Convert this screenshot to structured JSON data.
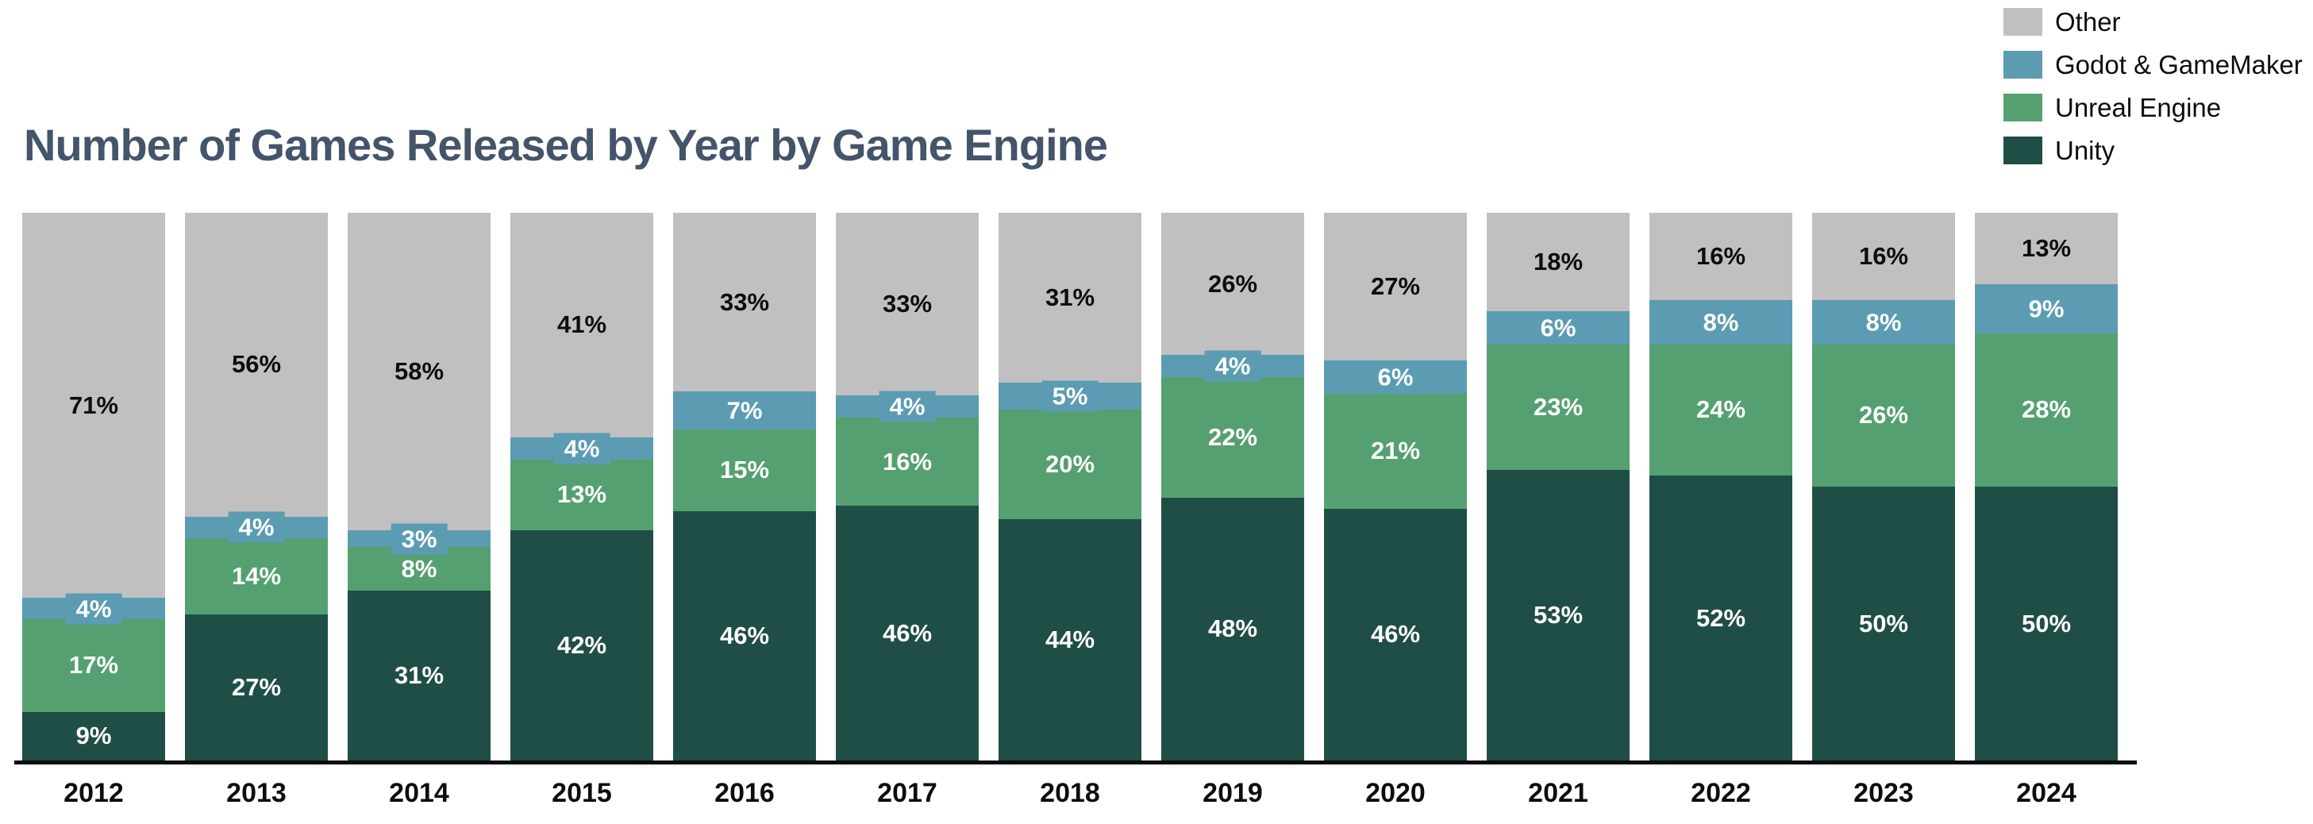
{
  "chart_data": {
    "type": "bar",
    "stacked": true,
    "normalized_to_100_percent": true,
    "title": "Number of Games Released by Year by Game Engine",
    "title_color": "#44546A",
    "value_suffix": "%",
    "xlabel": "",
    "ylabel": "",
    "axis_line_color": "#0c0c0c",
    "grid": false,
    "legend_position": "top-right",
    "legend_order_top_to_bottom": [
      "Other",
      "Godot & GameMaker",
      "Unreal Engine",
      "Unity"
    ],
    "categories": [
      "2012",
      "2013",
      "2014",
      "2015",
      "2016",
      "2017",
      "2018",
      "2019",
      "2020",
      "2021",
      "2022",
      "2023",
      "2024"
    ],
    "series": [
      {
        "name": "Unity",
        "color": "#1F4E46",
        "label_style": "light",
        "values": [
          9,
          27,
          31,
          42,
          46,
          46,
          44,
          48,
          46,
          53,
          52,
          50,
          50
        ]
      },
      {
        "name": "Unreal Engine",
        "color": "#55A071",
        "label_style": "light",
        "values": [
          17,
          14,
          8,
          13,
          15,
          16,
          20,
          22,
          21,
          23,
          24,
          26,
          28
        ]
      },
      {
        "name": "Godot & GameMaker",
        "color": "#5B9CB3",
        "label_style": "chip",
        "values": [
          4,
          4,
          3,
          4,
          7,
          4,
          5,
          4,
          6,
          6,
          8,
          8,
          9
        ]
      },
      {
        "name": "Other",
        "color": "#C1C0C0",
        "label_style": "dark",
        "values": [
          71,
          56,
          58,
          41,
          33,
          33,
          31,
          26,
          27,
          18,
          16,
          16,
          13
        ]
      }
    ]
  }
}
